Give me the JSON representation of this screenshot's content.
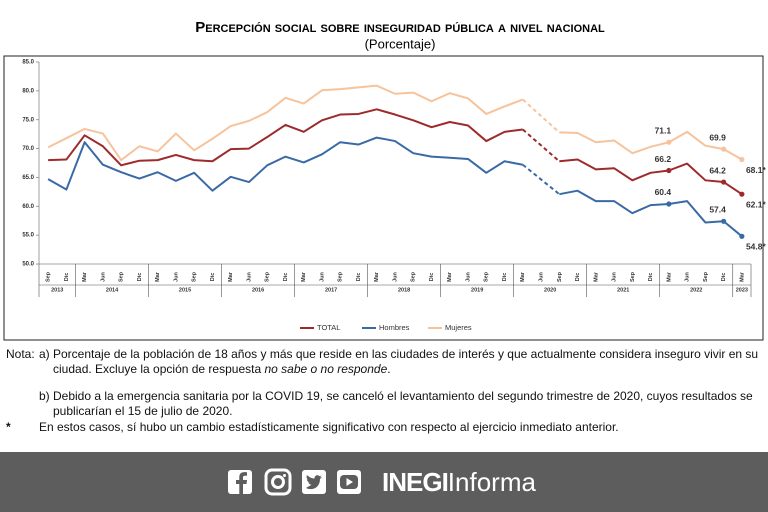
{
  "chart_data": {
    "type": "line",
    "title": "Percepción social sobre inseguridad pública a nivel nacional",
    "subtitle": "(Porcentaje)",
    "categories": [
      "Sep",
      "Dic",
      "Mar",
      "Jun",
      "Sep",
      "Dic",
      "Mar",
      "Jun",
      "Sep",
      "Dic",
      "Mar",
      "Jun",
      "Sep",
      "Dic",
      "Mar",
      "Jun",
      "Sep",
      "Dic",
      "Mar",
      "Jun",
      "Sep",
      "Dic",
      "Mar",
      "Jun",
      "Sep",
      "Dic",
      "Mar",
      "Jun",
      "Sep",
      "Dic",
      "Mar",
      "Jun",
      "Sep",
      "Dic",
      "Mar",
      "Jun",
      "Sep",
      "Dic",
      "Mar"
    ],
    "year_labels": [
      "2013",
      "2014",
      "2015",
      "2016",
      "2017",
      "2018",
      "2019",
      "2020",
      "2021",
      "2022",
      "2023"
    ],
    "ylim": [
      50,
      85
    ],
    "yticks": [
      {
        "value": 50,
        "label": "50.0"
      },
      {
        "value": 55,
        "label": "55.0"
      },
      {
        "value": 60,
        "label": "60.0"
      },
      {
        "value": 65,
        "label": "65.0"
      },
      {
        "value": 70,
        "label": "70.0"
      },
      {
        "value": 75,
        "label": "75.0"
      },
      {
        "value": 80,
        "label": "80.0"
      },
      {
        "value": 85,
        "label": "85.0"
      }
    ],
    "grid": false,
    "legend": "bottom",
    "series": [
      {
        "name": "TOTAL",
        "color": "#9e2a2b",
        "values": [
          68.0,
          68.1,
          72.3,
          70.4,
          67.1,
          67.9,
          68.0,
          68.9,
          68.0,
          67.8,
          69.9,
          70.0,
          72.0,
          74.1,
          72.9,
          74.9,
          75.9,
          76.0,
          76.8,
          75.9,
          74.9,
          73.7,
          74.6,
          74.0,
          71.3,
          72.9,
          73.3,
          null,
          67.8,
          68.1,
          66.4,
          66.6,
          64.5,
          65.8,
          66.2,
          67.4,
          64.5,
          64.2,
          62.1
        ],
        "value_labels": [
          null,
          null,
          null,
          null,
          null,
          null,
          null,
          null,
          null,
          null,
          null,
          null,
          null,
          null,
          null,
          null,
          null,
          null,
          null,
          null,
          null,
          null,
          null,
          null,
          null,
          null,
          null,
          null,
          null,
          null,
          null,
          null,
          null,
          null,
          "66.2",
          null,
          null,
          "64.2",
          "62.1*"
        ]
      },
      {
        "name": "Hombres",
        "color": "#3a6aa5",
        "values": [
          64.7,
          62.9,
          71.1,
          67.2,
          65.9,
          64.8,
          65.9,
          64.4,
          65.8,
          62.7,
          65.1,
          64.2,
          67.1,
          68.6,
          67.6,
          69.0,
          71.1,
          70.7,
          71.9,
          71.3,
          69.2,
          68.6,
          68.4,
          68.2,
          65.8,
          67.8,
          67.2,
          null,
          62.1,
          62.7,
          60.9,
          60.9,
          58.8,
          60.2,
          60.4,
          60.9,
          57.2,
          57.4,
          54.8
        ],
        "value_labels": [
          null,
          null,
          null,
          null,
          null,
          null,
          null,
          null,
          null,
          null,
          null,
          null,
          null,
          null,
          null,
          null,
          null,
          null,
          null,
          null,
          null,
          null,
          null,
          null,
          null,
          null,
          null,
          null,
          null,
          null,
          null,
          null,
          null,
          null,
          "60.4",
          null,
          null,
          "57.4",
          "54.8*"
        ]
      },
      {
        "name": "Mujeres",
        "color": "#f6c39c",
        "values": [
          70.2,
          71.8,
          73.4,
          72.6,
          68.0,
          70.4,
          69.5,
          72.6,
          69.7,
          71.7,
          73.9,
          74.8,
          76.3,
          78.8,
          77.8,
          80.1,
          80.3,
          80.6,
          80.9,
          79.5,
          79.7,
          78.2,
          79.6,
          78.7,
          76.0,
          77.3,
          78.5,
          null,
          72.8,
          72.7,
          71.1,
          71.4,
          69.2,
          70.3,
          71.1,
          72.9,
          70.5,
          69.9,
          68.1
        ],
        "value_labels": [
          null,
          null,
          null,
          null,
          null,
          null,
          null,
          null,
          null,
          null,
          null,
          null,
          null,
          null,
          null,
          null,
          null,
          null,
          null,
          null,
          null,
          null,
          null,
          null,
          null,
          null,
          null,
          null,
          null,
          null,
          null,
          null,
          null,
          null,
          "71.1",
          null,
          null,
          "69.9",
          "68.1*"
        ]
      }
    ]
  },
  "notes": {
    "label": "Nota:",
    "a_text": "a) Porcentaje de la población de 18 años y más que reside en las ciudades de interés y que actualmente considera inseguro vivir en su ciudad. Excluye la opción de respuesta",
    "a_italic": "no sabe o no responde",
    "a_end": ".",
    "b_text": "b) Debido a la emergencia sanitaria por la COVID 19, se canceló el levantamiento del segundo trimestre de 2020, cuyos resultados se publicarían el 15 de julio de 2020.",
    "star": "*",
    "star_text": "En estos casos, sí hubo un cambio estadísticamente significativo con respecto al ejercicio inmediato anterior."
  },
  "footer": {
    "brand": "INEGI",
    "brand_suffix": "Informa"
  }
}
